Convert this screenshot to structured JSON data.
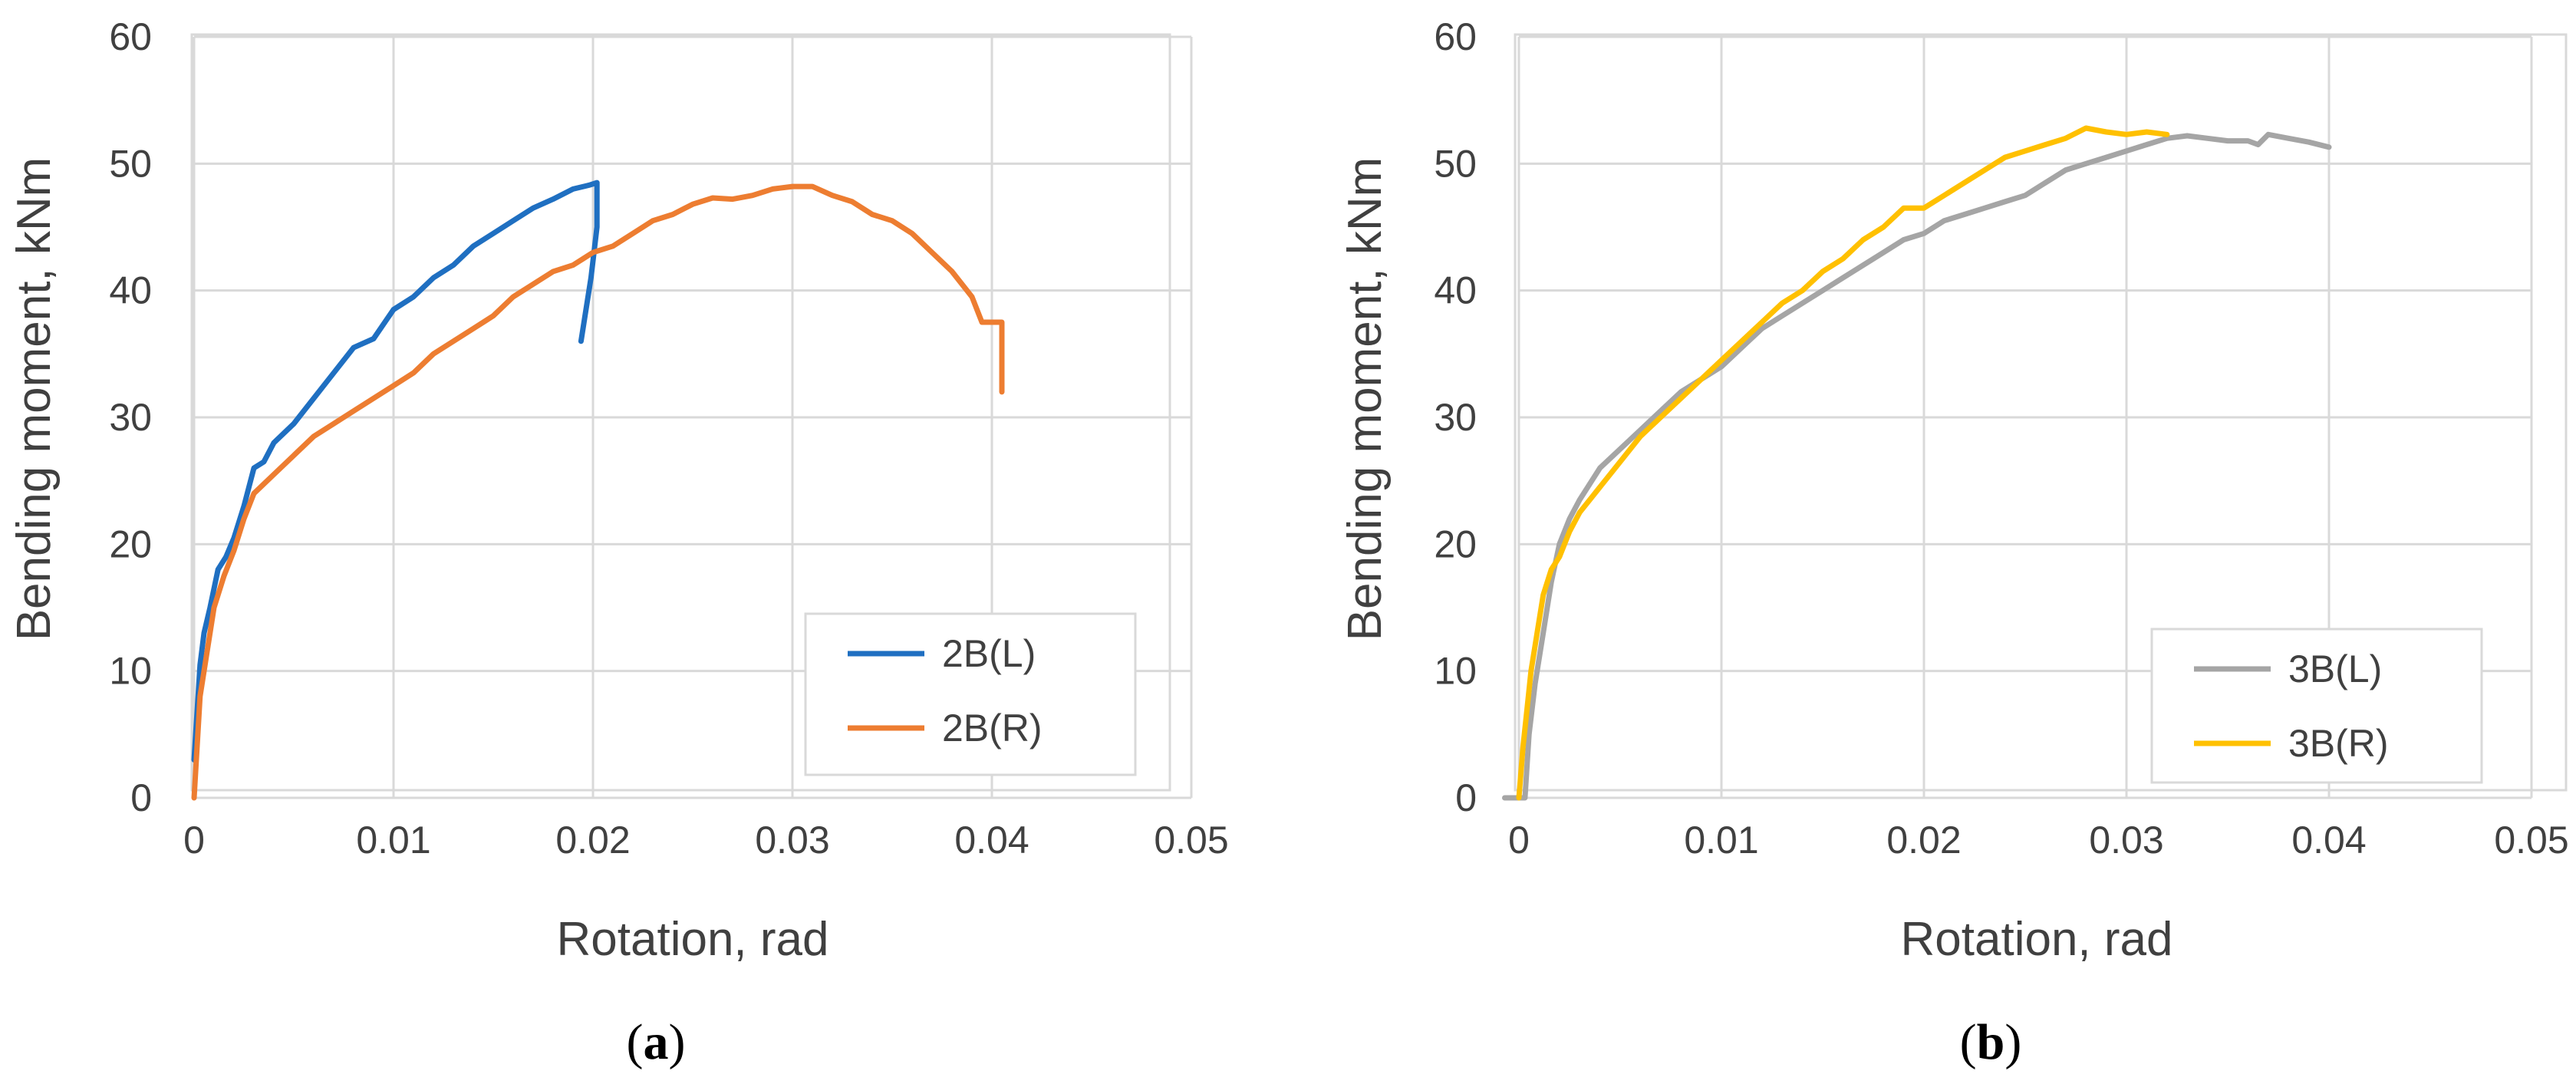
{
  "chart_data": [
    {
      "type": "line",
      "caption": "a",
      "xlabel": "Rotation, rad",
      "ylabel": "Bending moment, kNm",
      "xlim": [
        0,
        0.05
      ],
      "ylim": [
        0,
        60
      ],
      "xticks": [
        "0",
        "0.01",
        "0.02",
        "0.03",
        "0.04",
        "0.05"
      ],
      "yticks": [
        "0",
        "10",
        "20",
        "30",
        "40",
        "50",
        "60"
      ],
      "grid": true,
      "legend_position": "bottom-right",
      "series": [
        {
          "name": "2B(L)",
          "color": "#1f6fc1",
          "x": [
            0,
            0.0002,
            0.0003,
            0.0005,
            0.0008,
            0.0012,
            0.0016,
            0.002,
            0.0025,
            0.003,
            0.0035,
            0.004,
            0.005,
            0.006,
            0.007,
            0.008,
            0.009,
            0.01,
            0.011,
            0.012,
            0.013,
            0.014,
            0.015,
            0.016,
            0.017,
            0.018,
            0.019,
            0.0198,
            0.0202,
            0.0202,
            0.0199,
            0.0196,
            0.0194
          ],
          "y": [
            3,
            8,
            10.5,
            13,
            15,
            18,
            19,
            20.5,
            23,
            26,
            26.5,
            28,
            29.5,
            31.5,
            33.5,
            35.5,
            36.2,
            38.5,
            39.5,
            41,
            42,
            43.5,
            44.5,
            45.5,
            46.5,
            47.2,
            48,
            48.3,
            48.5,
            45,
            41,
            38,
            36
          ]
        },
        {
          "name": "2B(R)",
          "color": "#ed7d31",
          "x": [
            0,
            0.0003,
            0.0006,
            0.001,
            0.0015,
            0.002,
            0.0025,
            0.003,
            0.004,
            0.005,
            0.006,
            0.007,
            0.008,
            0.009,
            0.01,
            0.011,
            0.012,
            0.013,
            0.014,
            0.015,
            0.016,
            0.017,
            0.018,
            0.019,
            0.02,
            0.021,
            0.022,
            0.023,
            0.024,
            0.025,
            0.026,
            0.027,
            0.028,
            0.029,
            0.03,
            0.031,
            0.032,
            0.033,
            0.034,
            0.035,
            0.036,
            0.037,
            0.038,
            0.039,
            0.0395,
            0.0405,
            0.0405
          ],
          "y": [
            0,
            8,
            11,
            15,
            17.5,
            19.5,
            22,
            24,
            25.5,
            27,
            28.5,
            29.5,
            30.5,
            31.5,
            32.5,
            33.5,
            35,
            36,
            37,
            38,
            39.5,
            40.5,
            41.5,
            42,
            43,
            43.5,
            44.5,
            45.5,
            46,
            46.8,
            47.3,
            47.2,
            47.5,
            48,
            48.2,
            48.2,
            47.5,
            47,
            46,
            45.5,
            44.5,
            43,
            41.5,
            39.5,
            37.5,
            37.5,
            32
          ]
        }
      ]
    },
    {
      "type": "line",
      "caption": "b",
      "xlabel": "Rotation, rad",
      "ylabel": "Bending moment, kNm",
      "xlim": [
        0,
        0.05
      ],
      "ylim": [
        0,
        60
      ],
      "xticks": [
        "0",
        "0.01",
        "0.02",
        "0.03",
        "0.04",
        "0.05"
      ],
      "yticks": [
        "0",
        "10",
        "20",
        "30",
        "40",
        "50",
        "60"
      ],
      "grid": true,
      "legend_position": "bottom-right",
      "series": [
        {
          "name": "3B(L)",
          "color": "#a5a5a5",
          "x": [
            -0.0007,
            0.0003,
            0.0005,
            0.0008,
            0.0012,
            0.0016,
            0.002,
            0.0025,
            0.003,
            0.004,
            0.005,
            0.006,
            0.007,
            0.008,
            0.009,
            0.01,
            0.011,
            0.012,
            0.013,
            0.014,
            0.015,
            0.016,
            0.017,
            0.018,
            0.019,
            0.02,
            0.021,
            0.022,
            0.023,
            0.024,
            0.025,
            0.026,
            0.027,
            0.028,
            0.029,
            0.03,
            0.031,
            0.032,
            0.033,
            0.034,
            0.035,
            0.036,
            0.0365,
            0.037,
            0.038,
            0.039,
            0.04
          ],
          "y": [
            0,
            0,
            5,
            9,
            13,
            17,
            20,
            22,
            23.5,
            26,
            27.5,
            29,
            30.5,
            32,
            33,
            34,
            35.5,
            37,
            38,
            39,
            40,
            41,
            42,
            43,
            44,
            44.5,
            45.5,
            46,
            46.5,
            47,
            47.5,
            48.5,
            49.5,
            50,
            50.5,
            51,
            51.5,
            52,
            52.2,
            52,
            51.8,
            51.8,
            51.5,
            52.3,
            52,
            51.7,
            51.3
          ]
        },
        {
          "name": "3B(R)",
          "color": "#ffc000",
          "x": [
            0,
            0.0002,
            0.0004,
            0.0006,
            0.0008,
            0.0012,
            0.0016,
            0.002,
            0.0025,
            0.003,
            0.004,
            0.005,
            0.006,
            0.007,
            0.008,
            0.009,
            0.01,
            0.011,
            0.012,
            0.013,
            0.014,
            0.015,
            0.016,
            0.017,
            0.018,
            0.019,
            0.02,
            0.021,
            0.022,
            0.023,
            0.024,
            0.025,
            0.026,
            0.027,
            0.028,
            0.029,
            0.03,
            0.031,
            0.032
          ],
          "y": [
            0,
            4,
            7,
            10,
            12,
            16,
            18,
            19,
            21,
            22.5,
            24.5,
            26.5,
            28.5,
            30,
            31.5,
            33,
            34.5,
            36,
            37.5,
            39,
            40,
            41.5,
            42.5,
            44,
            45,
            46.5,
            46.5,
            47.5,
            48.5,
            49.5,
            50.5,
            51,
            51.5,
            52,
            52.8,
            52.5,
            52.3,
            52.5,
            52.3
          ]
        }
      ]
    }
  ]
}
